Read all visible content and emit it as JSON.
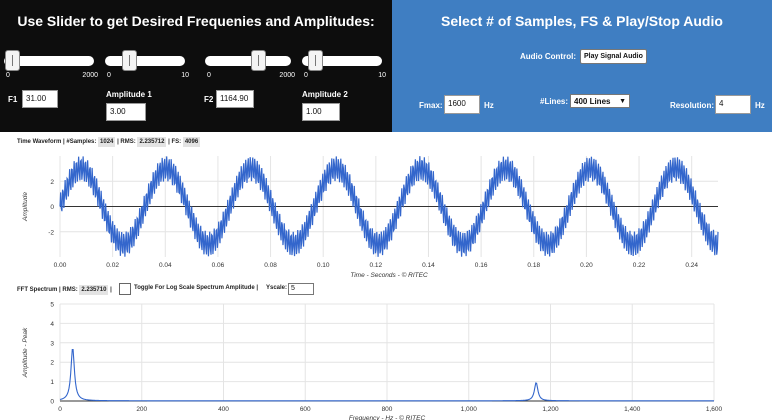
{
  "left_panel": {
    "title": "Use Slider to get Desired Frequenies and Amplitudes:",
    "sliders": [
      {
        "name": "f1",
        "min_label": "0",
        "max_label": "2000",
        "value": 31
      },
      {
        "name": "amplitude1",
        "min_label": "0",
        "max_label": "10",
        "value": 3
      },
      {
        "name": "f2",
        "min_label": "0",
        "max_label": "2000",
        "value": 1164.9
      },
      {
        "name": "amplitude2",
        "min_label": "0",
        "max_label": "10",
        "value": 1
      }
    ],
    "f1_label": "F1",
    "f1_value": "31.00",
    "amp1_label": "Amplitude 1",
    "amp1_value": "3.00",
    "f2_label": "F2",
    "f2_value": "1164.90",
    "amp2_label": "Amplitude 2",
    "amp2_value": "1.00"
  },
  "right_panel": {
    "title": "Select # of Samples, FS & Play/Stop Audio",
    "audio_label": "Audio Control:",
    "play_button": "Play Signal Audio",
    "fmax_label": "Fmax:",
    "fmax_value": "1600",
    "fmax_unit": "Hz",
    "lines_label": "#Lines:",
    "lines_value": "400 Lines",
    "resolution_label": "Resolution:",
    "resolution_value": "4",
    "resolution_unit": "Hz"
  },
  "time_info": {
    "title": "Time Waveform | #Samples:",
    "samples": "1024",
    "rms_label": "| RMS:",
    "rms_value": "2.235712",
    "fs_label": "| FS:",
    "fs_value": "4096"
  },
  "fft_info": {
    "title": "FFT Spectrum |",
    "rms_label": "RMS:",
    "rms_value": "2.235710",
    "sep": "|",
    "toggle_label": "Toggle For Log Scale Spectrum Amplitude |",
    "yscale_label": "Yscale:",
    "yscale_value": "5"
  },
  "chart_data": [
    {
      "type": "line",
      "title": "",
      "xlabel": "Time - Seconds - © RITEC",
      "ylabel": "Amplitude",
      "xlim": [
        0,
        0.25
      ],
      "ylim": [
        -4,
        4
      ],
      "x_ticks": [
        "0.00",
        "0.02",
        "0.04",
        "0.06",
        "0.08",
        "0.10",
        "0.12",
        "0.14",
        "0.16",
        "0.18",
        "0.20",
        "0.22",
        "0.24"
      ],
      "y_ticks": [
        "2",
        "0",
        "-2"
      ],
      "grid": true,
      "series": [
        {
          "color": "#3366cc",
          "f1": 31,
          "a1": 3,
          "f2": 1164.9,
          "a2": 1,
          "fs": 4096,
          "samples": 1024
        }
      ]
    },
    {
      "type": "line",
      "title": "",
      "xlabel": "Frequency - Hz - © RITEC",
      "ylabel": "Amplitude - Peak",
      "xlim": [
        0,
        1600
      ],
      "ylim": [
        0,
        5
      ],
      "x_ticks": [
        "0",
        "200",
        "400",
        "600",
        "800",
        "1,000",
        "1,200",
        "1,400",
        "1,600"
      ],
      "y_ticks": [
        "5",
        "4",
        "3",
        "2",
        "1",
        "0"
      ],
      "grid": true,
      "series": [
        {
          "color": "#3366cc",
          "peaks": [
            {
              "x": 31,
              "y": 2.75
            },
            {
              "x": 1164.9,
              "y": 0.95
            }
          ]
        }
      ]
    }
  ]
}
